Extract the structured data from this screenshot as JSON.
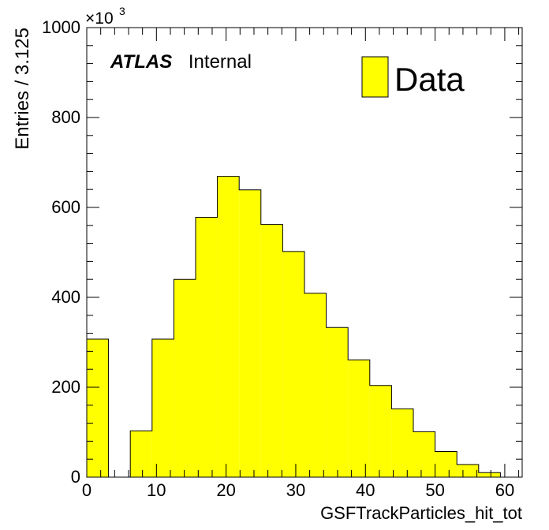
{
  "chart_data": {
    "type": "bar",
    "histogram": true,
    "bin_width": 3.125,
    "bin_edges": [
      0,
      3.125,
      6.25,
      9.375,
      12.5,
      15.625,
      18.75,
      21.875,
      25,
      28.125,
      31.25,
      34.375,
      37.5,
      40.625,
      43.75,
      46.875,
      50,
      53.125,
      56.25,
      59.375
    ],
    "series": [
      {
        "name": "Data",
        "color": "#ffff00",
        "values": [
          307,
          0,
          103,
          307,
          440,
          578,
          669,
          639,
          562,
          502,
          409,
          333,
          261,
          204,
          152,
          101,
          57,
          28,
          10
        ]
      }
    ],
    "xlim": [
      0,
      62.5
    ],
    "ylim": [
      0,
      1000
    ],
    "x_ticks": [
      "0",
      "10",
      "20",
      "30",
      "40",
      "50",
      "60"
    ],
    "y_ticks": [
      "0",
      "200",
      "400",
      "600",
      "800",
      "1000"
    ],
    "y_multiplier_base": "×10",
    "y_multiplier_exp": "3",
    "xlabel": "GSFTrackParticles_hit_tot",
    "ylabel": "Entries / 3.125",
    "label_bold": "ATLAS",
    "label_text": "Internal",
    "legend_position": "top-right",
    "grid": false
  }
}
